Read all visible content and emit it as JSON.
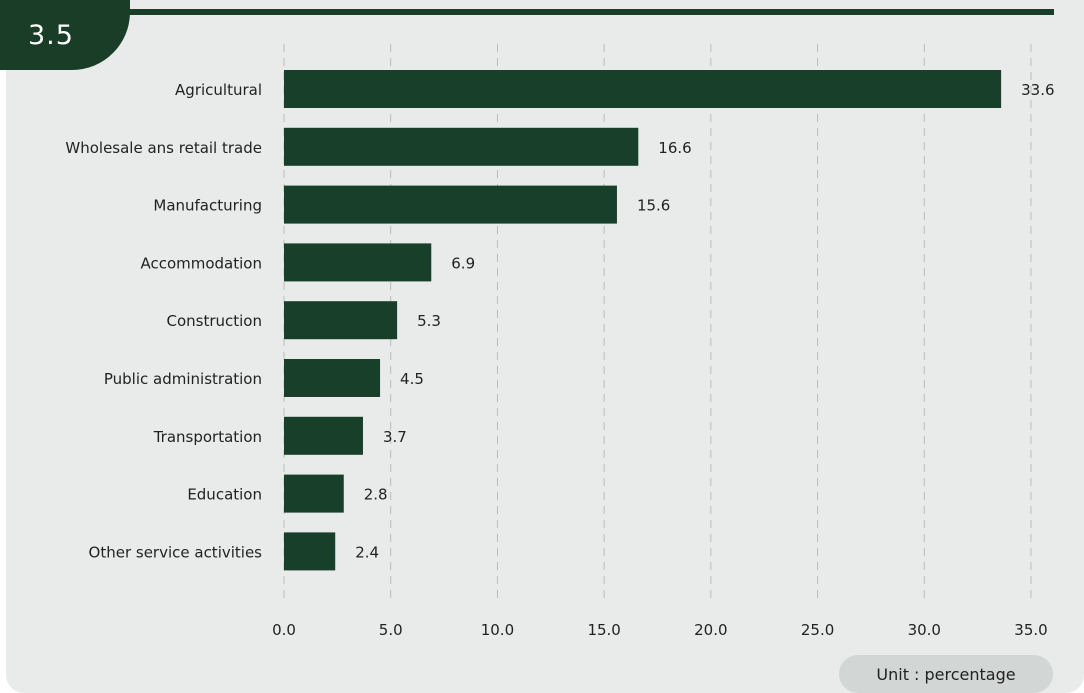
{
  "badge": {
    "label": "3.5"
  },
  "unit_label": "Unit : percentage",
  "colors": {
    "bar": "#173f29",
    "badge": "#1a3d28",
    "background": "#e8ebea"
  },
  "chart_data": {
    "type": "bar",
    "orientation": "horizontal",
    "categories": [
      "Agricultural",
      "Wholesale ans retail trade",
      "Manufacturing",
      "Accommodation",
      "Construction",
      "Public administration",
      "Transportation",
      "Education",
      "Other service activities"
    ],
    "values": [
      33.6,
      16.6,
      15.6,
      6.9,
      5.3,
      4.5,
      3.7,
      2.8,
      2.4
    ],
    "value_labels": [
      "33.6",
      "16.6",
      "15.6",
      "6.9",
      "5.3",
      "4.5",
      "3.7",
      "2.8",
      "2.4"
    ],
    "xlim": [
      0,
      35
    ],
    "xticks": [
      "0.0",
      "5.0",
      "10.0",
      "15.0",
      "20.0",
      "25.0",
      "30.0",
      "35.0"
    ],
    "grid": "vertical dashed",
    "xlabel": "",
    "ylabel": ""
  }
}
